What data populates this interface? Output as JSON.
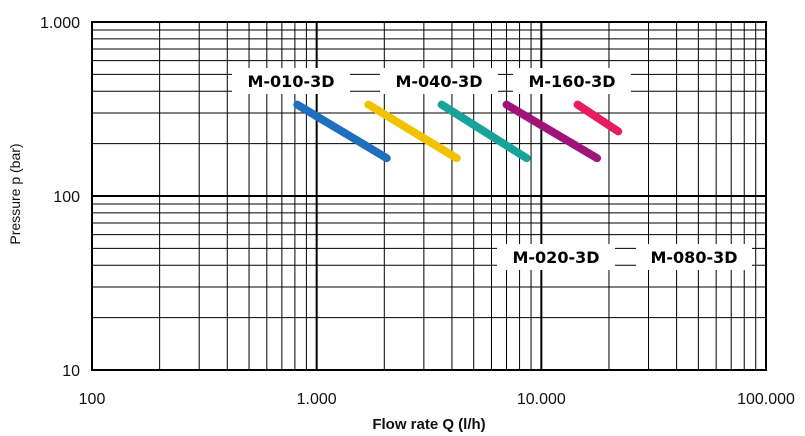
{
  "chart_data": {
    "type": "line",
    "xlabel": "Flow rate Q (l/h)",
    "ylabel": "Pressure p (bar)",
    "x_scale": "log",
    "y_scale": "log",
    "xlim": [
      100,
      100000
    ],
    "ylim": [
      10,
      1000
    ],
    "x_ticks": [
      {
        "value": 100,
        "label": "100"
      },
      {
        "value": 1000,
        "label": "1.000"
      },
      {
        "value": 10000,
        "label": "10.000"
      },
      {
        "value": 100000,
        "label": "100.000"
      }
    ],
    "y_ticks": [
      {
        "value": 10,
        "label": "10"
      },
      {
        "value": 100,
        "label": "100"
      },
      {
        "value": 1000,
        "label": "1.000"
      }
    ],
    "grid": true,
    "series": [
      {
        "name": "M-010-3D",
        "color": "#1f6fbf",
        "x": [
          820,
          2050
        ],
        "y": [
          335,
          165
        ]
      },
      {
        "name": "M-020-3D",
        "color": "#f2c200",
        "x": [
          1700,
          4200
        ],
        "y": [
          335,
          165
        ]
      },
      {
        "name": "M-040-3D",
        "color": "#16a39a",
        "x": [
          3600,
          8600
        ],
        "y": [
          335,
          165
        ]
      },
      {
        "name": "M-080-3D",
        "color": "#a0147a",
        "x": [
          7000,
          17700
        ],
        "y": [
          335,
          165
        ]
      },
      {
        "name": "M-160-3D",
        "color": "#e81b63",
        "x": [
          14500,
          22000
        ],
        "y": [
          335,
          235
        ]
      }
    ],
    "series_labels": [
      {
        "text": "M-010-3D",
        "placement": "above"
      },
      {
        "text": "M-040-3D",
        "placement": "above"
      },
      {
        "text": "M-160-3D",
        "placement": "above"
      },
      {
        "text": "M-020-3D",
        "placement": "below"
      },
      {
        "text": "M-080-3D",
        "placement": "below"
      }
    ]
  }
}
